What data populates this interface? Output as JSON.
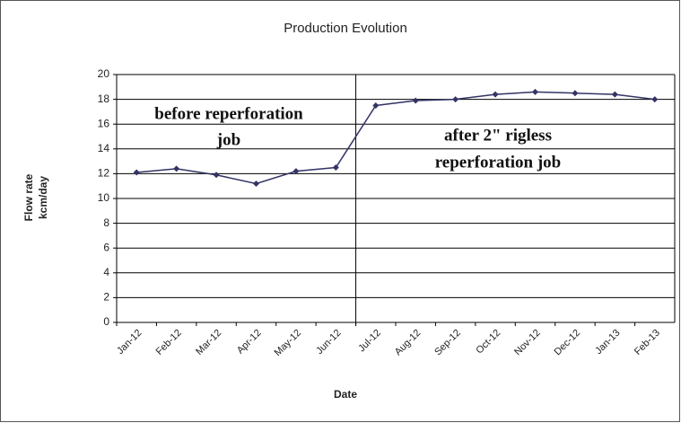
{
  "chart_data": {
    "type": "line",
    "title": "Production Evolution",
    "ylabel": [
      "Flow rate",
      "kcm/day"
    ],
    "xlabel": "Date",
    "annotations": [
      [
        "before reperforation",
        "job"
      ],
      [
        "after 2\" rigless",
        "reperforation job"
      ]
    ],
    "categories": [
      "Jan-12",
      "Feb-12",
      "Mar-12",
      "Apr-12",
      "May-12",
      "Jun-12",
      "Jul-12",
      "Aug-12",
      "Sep-12",
      "Oct-12",
      "Nov-12",
      "Dec-12",
      "Jan-13",
      "Feb-13"
    ],
    "values": [
      12.1,
      12.4,
      11.9,
      11.2,
      12.2,
      12.5,
      17.5,
      17.9,
      18.0,
      18.4,
      18.6,
      18.5,
      18.4,
      18.0
    ],
    "color": "#333366",
    "ylim": [
      0,
      20
    ],
    "yticks": [
      0,
      2,
      4,
      6,
      8,
      10,
      12,
      14,
      16,
      18,
      20
    ],
    "grid": true
  }
}
